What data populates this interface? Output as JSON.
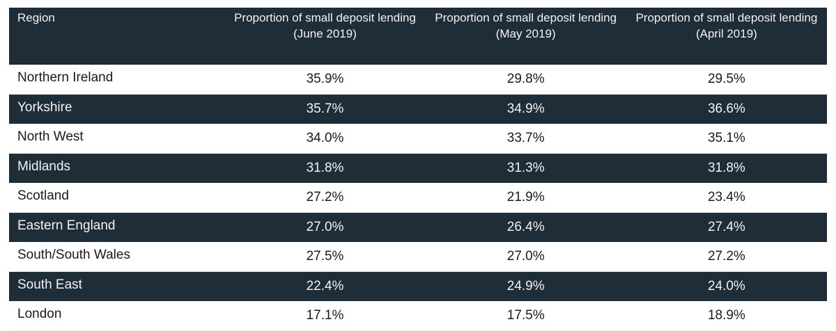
{
  "table": {
    "headers": [
      "Region",
      "Proportion of small deposit lending (June 2019)",
      "Proportion of small deposit lending (May 2019)",
      "Proportion of small deposit lending (April 2019)"
    ],
    "rows": [
      {
        "region": "Northern Ireland",
        "june": "35.9%",
        "may": "29.8%",
        "april": "29.5%"
      },
      {
        "region": "Yorkshire",
        "june": "35.7%",
        "may": "34.9%",
        "april": "36.6%"
      },
      {
        "region": "North West",
        "june": "34.0%",
        "may": "33.7%",
        "april": "35.1%"
      },
      {
        "region": "Midlands",
        "june": "31.8%",
        "may": "31.3%",
        "april": "31.8%"
      },
      {
        "region": "Scotland",
        "june": "27.2%",
        "may": "21.9%",
        "april": "23.4%"
      },
      {
        "region": "Eastern England",
        "june": "27.0%",
        "may": "26.4%",
        "april": "27.4%"
      },
      {
        "region": "South/South Wales",
        "june": "27.5%",
        "may": "27.0%",
        "april": "27.2%"
      },
      {
        "region": "South East",
        "june": "22.4%",
        "may": "24.9%",
        "april": "24.0%"
      },
      {
        "region": "London",
        "june": "17.1%",
        "may": "17.5%",
        "april": "18.9%"
      }
    ]
  },
  "colors": {
    "header_bg": "#1f2d38",
    "header_text": "#f2f2f2",
    "dark_row_bg": "#1f2d38",
    "light_row_bg": "#ffffff",
    "body_text": "#1a1a1a"
  }
}
